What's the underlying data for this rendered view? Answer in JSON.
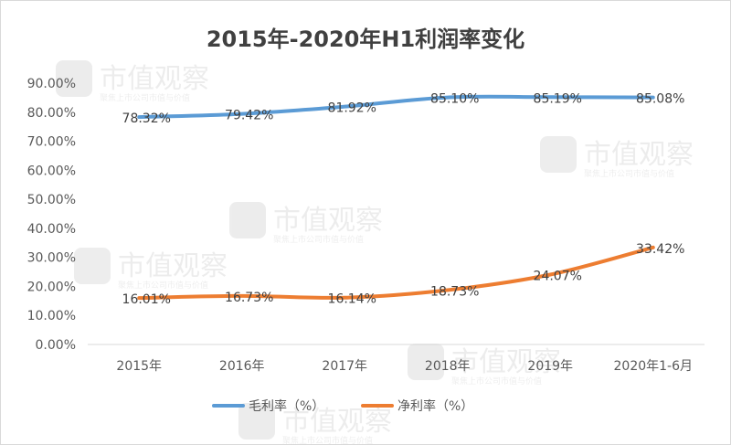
{
  "chart_data": {
    "type": "line",
    "title": "2015年-2020年H1利润率变化",
    "categories": [
      "2015年",
      "2016年",
      "2017年",
      "2018年",
      "2019年",
      "2020年1-6月"
    ],
    "series": [
      {
        "name": "毛利率（%）",
        "color": "#5b9bd5",
        "values": [
          78.32,
          79.42,
          81.92,
          85.1,
          85.19,
          85.08
        ],
        "labels": [
          "78.32%",
          "79.42%",
          "81.92%",
          "85.10%",
          "85.19%",
          "85.08%"
        ]
      },
      {
        "name": "净利率（%）",
        "color": "#ed7d31",
        "values": [
          16.01,
          16.73,
          16.14,
          18.73,
          24.07,
          33.42
        ],
        "labels": [
          "16.01%",
          "16.73%",
          "16.14%",
          "18.73%",
          "24.07%",
          "33.42%"
        ]
      }
    ],
    "y_ticks": [
      "0.00%",
      "10.00%",
      "20.00%",
      "30.00%",
      "40.00%",
      "50.00%",
      "60.00%",
      "70.00%",
      "80.00%",
      "90.00%"
    ],
    "ylim": [
      0,
      90
    ],
    "grid": false,
    "legend_position": "bottom"
  },
  "watermark": {
    "brand": "市值观察",
    "tagline": "聚焦上市公司市值与价值"
  }
}
